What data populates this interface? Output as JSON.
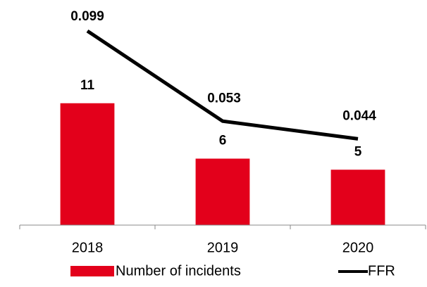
{
  "chart_data": {
    "type": "bar",
    "categories": [
      "2018",
      "2019",
      "2020"
    ],
    "series": [
      {
        "name": "Number of incidents",
        "type": "bar",
        "color": "#e3001b",
        "values": [
          11,
          6,
          5
        ]
      },
      {
        "name": "FFR",
        "type": "line",
        "axis": "y2",
        "color": "#000000",
        "values": [
          0.099,
          0.053,
          0.044
        ]
      }
    ],
    "ylim": [
      0,
      20
    ],
    "y2lim": [
      0,
      0.113
    ],
    "legend": "bottom"
  }
}
